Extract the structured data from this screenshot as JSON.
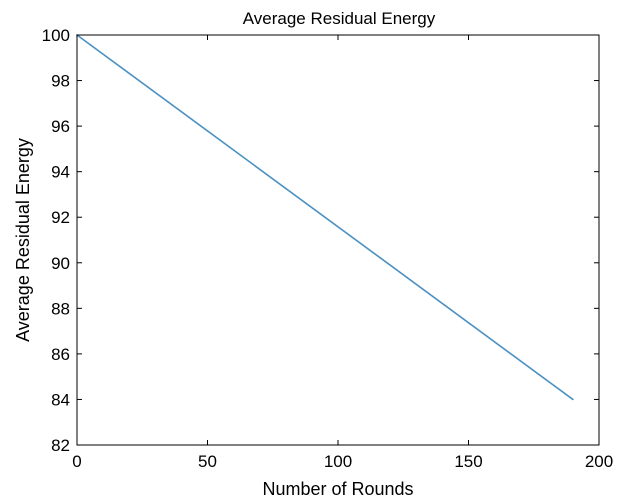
{
  "chart_data": {
    "type": "line",
    "title": "Average Residual Energy",
    "xlabel": "Number of Rounds",
    "ylabel": "Average Residual Energy",
    "xlim": [
      0,
      200
    ],
    "ylim": [
      82,
      100
    ],
    "xticks": [
      0,
      50,
      100,
      150,
      200
    ],
    "yticks": [
      82,
      84,
      86,
      88,
      90,
      92,
      94,
      96,
      98,
      100
    ],
    "xtick_labels": [
      "0",
      "50",
      "100",
      "150",
      "200"
    ],
    "ytick_labels": [
      "82",
      "84",
      "86",
      "88",
      "90",
      "92",
      "94",
      "96",
      "98",
      "100"
    ],
    "grid": false,
    "legend": "none",
    "series": [
      {
        "color": "#4a90c2",
        "x": [
          0,
          190
        ],
        "y": [
          100,
          84
        ]
      }
    ]
  }
}
